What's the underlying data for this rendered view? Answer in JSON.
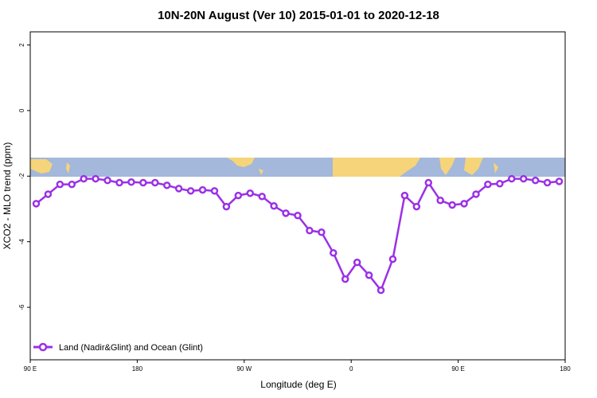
{
  "chart_data": {
    "type": "line",
    "title": "10N-20N August (Ver 10)   2015-01-01 to 2020-12-18",
    "x_label": "Longitude (deg E)",
    "y_label": "XCO2 - MLO trend (ppm)",
    "x": [
      95,
      105,
      115,
      125,
      135,
      145,
      155,
      165,
      175,
      185,
      195,
      205,
      215,
      225,
      235,
      245,
      255,
      265,
      275,
      285,
      295,
      305,
      315,
      325,
      335,
      345,
      355,
      365,
      375,
      385,
      395,
      405,
      415,
      425,
      435,
      445,
      455,
      465,
      475,
      485,
      495,
      505,
      515,
      525,
      535
    ],
    "series": [
      {
        "name": "Land (Nadir&Glint) and Ocean (Glint)",
        "color": "#9b30e6",
        "values": [
          -2.84,
          -2.55,
          -2.25,
          -2.25,
          -2.08,
          -2.08,
          -2.13,
          -2.2,
          -2.18,
          -2.2,
          -2.2,
          -2.28,
          -2.38,
          -2.45,
          -2.42,
          -2.45,
          -2.93,
          -2.59,
          -2.52,
          -2.62,
          -2.91,
          -3.13,
          -3.2,
          -3.66,
          -3.71,
          -4.34,
          -5.14,
          -4.63,
          -5.02,
          -5.48,
          -4.53,
          -2.59,
          -2.93,
          -2.2,
          -2.74,
          -2.88,
          -2.84,
          -2.55,
          -2.25,
          -2.23,
          -2.08,
          -2.08,
          -2.13,
          -2.2,
          -2.16
        ]
      }
    ],
    "xlim": [
      90,
      540
    ],
    "xticks": [
      {
        "value": 90,
        "label": "90 E"
      },
      180,
      {
        "value": 270,
        "label": "90 W"
      },
      {
        "value": 360,
        "label": "0"
      },
      {
        "value": 450,
        "label": "90 E"
      },
      {
        "value": 540,
        "label": "180"
      }
    ],
    "ylim": [
      -7.6,
      2.4
    ],
    "yticks": [
      -6,
      -4,
      -2,
      0,
      2
    ],
    "legend": "bottom-left"
  }
}
